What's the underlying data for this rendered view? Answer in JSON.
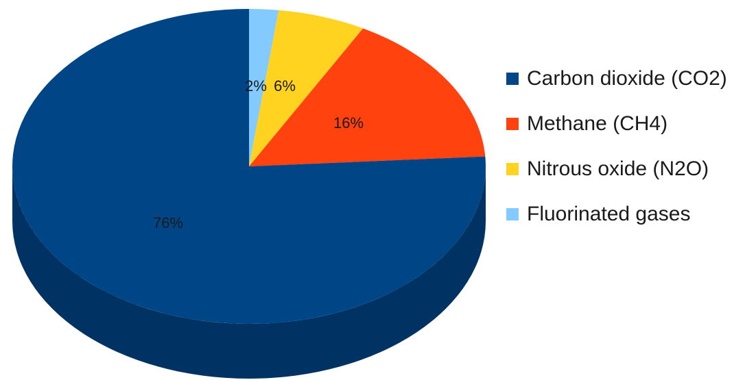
{
  "chart_data": {
    "type": "pie",
    "title": "",
    "style": "3d",
    "categories": [
      "Carbon dioxide (CO2)",
      "Methane (CH4)",
      "Nitrous oxide (N2O)",
      "Fluorinated gases"
    ],
    "values": [
      76,
      16,
      6,
      2
    ],
    "value_labels": [
      "76%",
      "16%",
      "6%",
      "2%"
    ],
    "colors": [
      "#004586",
      "#ff420e",
      "#ffd320",
      "#83caff"
    ],
    "side_colors": [
      "#003263",
      "#b82f0a",
      "#b89817",
      "#5e92b8"
    ],
    "legend_position": "right"
  }
}
